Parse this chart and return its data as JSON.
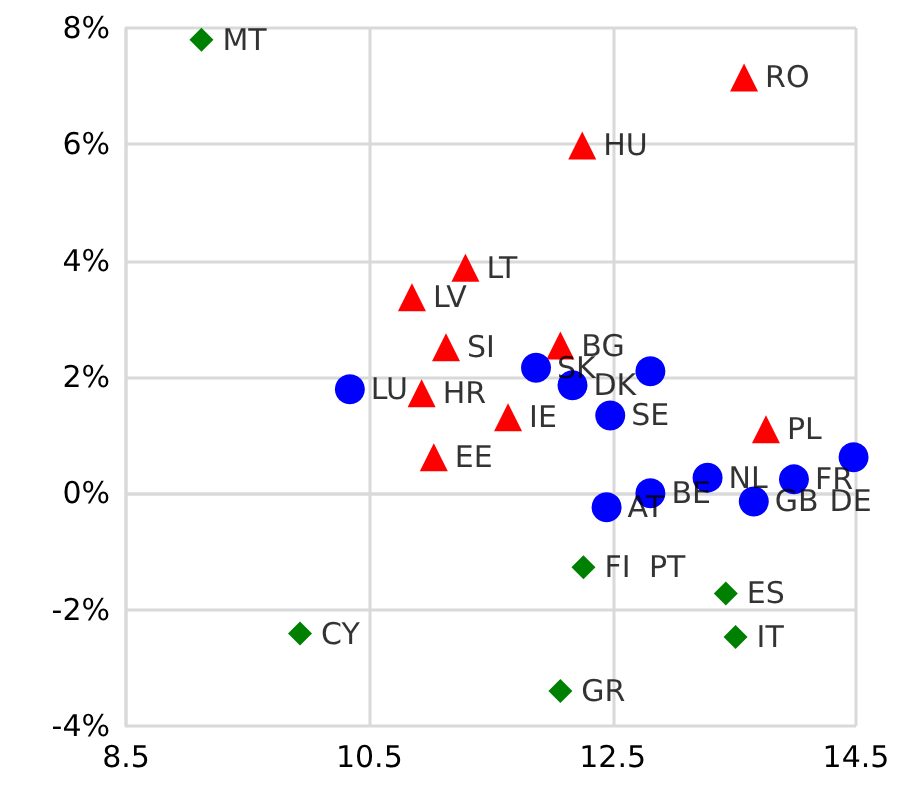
{
  "chart_data": {
    "type": "scatter",
    "xlim": [
      8.5,
      14.5
    ],
    "xticks": [
      8.5,
      10.5,
      12.5,
      14.5
    ],
    "ylim": [
      -4,
      8
    ],
    "yticks": [
      {
        "value": -4,
        "label": "-4%"
      },
      {
        "value": -2,
        "label": "-2%"
      },
      {
        "value": 0,
        "label": "0%"
      },
      {
        "value": 2,
        "label": "2%"
      },
      {
        "value": 4,
        "label": "4%"
      },
      {
        "value": 6,
        "label": "6%"
      },
      {
        "value": 8,
        "label": "8%"
      }
    ],
    "grid": true,
    "series": [
      {
        "color": "#ff0000",
        "marker": "triangle",
        "x": [
          13.58,
          12.25,
          11.29,
          10.85,
          11.13,
          12.07,
          10.93,
          11.64,
          13.76,
          11.03
        ],
        "values": [
          7.15,
          5.98,
          3.88,
          3.37,
          2.51,
          2.54,
          1.72,
          1.31,
          1.1,
          0.62
        ]
      },
      {
        "color": "#0000ff",
        "marker": "circle",
        "x": [
          10.34,
          11.87,
          12.17,
          12.48,
          12.81,
          12.45,
          12.81,
          13.28,
          13.66,
          13.99,
          14.48
        ],
        "values": [
          1.79,
          2.16,
          1.86,
          1.34,
          2.1,
          -0.24,
          0.0,
          0.27,
          -0.14,
          0.24,
          0.62
        ]
      },
      {
        "color": "#008000",
        "marker": "diamond",
        "x": [
          9.12,
          9.93,
          12.26,
          13.43,
          13.51,
          12.07
        ],
        "values": [
          7.8,
          -2.41,
          -1.27,
          -1.72,
          -2.47,
          -3.4
        ]
      }
    ],
    "annotations": [
      {
        "text": "RO",
        "x": 13.58,
        "y": 7.15
      },
      {
        "text": "HU",
        "x": 12.25,
        "y": 5.98
      },
      {
        "text": "LT",
        "x": 11.29,
        "y": 3.88
      },
      {
        "text": "LV",
        "x": 10.85,
        "y": 3.37
      },
      {
        "text": "SI",
        "x": 11.13,
        "y": 2.51
      },
      {
        "text": "BG",
        "x": 12.07,
        "y": 2.54
      },
      {
        "text": "HR",
        "x": 10.93,
        "y": 1.72
      },
      {
        "text": "IE",
        "x": 11.64,
        "y": 1.31
      },
      {
        "text": "PL",
        "x": 13.76,
        "y": 1.1
      },
      {
        "text": "EE",
        "x": 11.03,
        "y": 0.62
      },
      {
        "text": "LU",
        "x": 10.34,
        "y": 1.79
      },
      {
        "text": "SK",
        "x": 11.87,
        "y": 2.16
      },
      {
        "text": "DK",
        "x": 12.17,
        "y": 1.86
      },
      {
        "text": "SE",
        "x": 12.48,
        "y": 1.34
      },
      {
        "text": "AT",
        "x": 12.45,
        "y": -0.24
      },
      {
        "text": "BE",
        "x": 12.81,
        "y": 0.0
      },
      {
        "text": "NL",
        "x": 13.28,
        "y": 0.27
      },
      {
        "text": "GB",
        "x": 13.66,
        "y": -0.14
      },
      {
        "text": "FR",
        "x": 13.99,
        "y": 0.24
      },
      {
        "text": "DE",
        "x": 14.48,
        "y": 0.62
      },
      {
        "text": "MT",
        "x": 9.12,
        "y": 7.8
      },
      {
        "text": "CY",
        "x": 9.93,
        "y": -2.41
      },
      {
        "text": "FI",
        "x": 12.26,
        "y": -1.27
      },
      {
        "text": "PT",
        "x": 12.26,
        "y": -1.27
      },
      {
        "text": "ES",
        "x": 13.43,
        "y": -1.72
      },
      {
        "text": "IT",
        "x": 13.51,
        "y": -2.47
      },
      {
        "text": "GR",
        "x": 12.07,
        "y": -3.4
      }
    ]
  }
}
